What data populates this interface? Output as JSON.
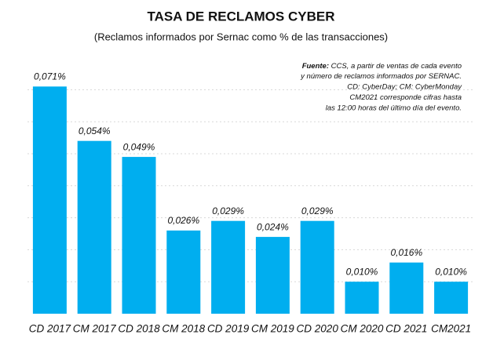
{
  "chart_data": {
    "type": "bar",
    "title": "TASA DE RECLAMOS CYBER",
    "subtitle": "(Reclamos informados por Sernac como % de las transacciones)",
    "categories": [
      "CD 2017",
      "CM 2017",
      "CD 2018",
      "CM 2018",
      "CD 2019",
      "CM 2019",
      "CD 2020",
      "CM 2020",
      "CD 2021",
      "CM2021"
    ],
    "values": [
      0.071,
      0.054,
      0.049,
      0.026,
      0.029,
      0.024,
      0.029,
      0.01,
      0.016,
      0.01
    ],
    "value_labels": [
      "0,071%",
      "0,054%",
      "0,049%",
      "0,026%",
      "0,029%",
      "0,024%",
      "0,029%",
      "0,010%",
      "0,016%",
      "0,010%"
    ],
    "color": "#00aeef",
    "ylim": [
      0,
      0.075
    ],
    "yticks": [
      0.01,
      0.02,
      0.03,
      0.04,
      0.05,
      0.06,
      0.07
    ],
    "grid": true,
    "note": {
      "label": "Fuente:",
      "lines": [
        "CCS, a partir de ventas de cada evento",
        "y  número de reclamos informados por SERNAC.",
        "CD: CyberDay; CM: CyberMonday",
        "CM2021 corresponde cifras hasta",
        "las 12:00 horas del último día del evento."
      ]
    }
  }
}
